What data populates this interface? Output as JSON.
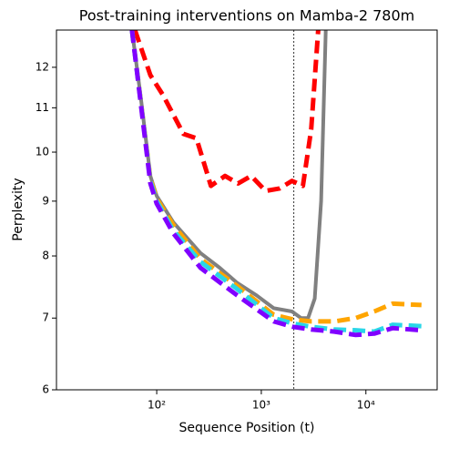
{
  "chart_data": {
    "type": "line",
    "title": "Post-training interventions on Mamba-2 780m",
    "x_label": "Sequence Position (t)",
    "y_label": "Perplexity",
    "xscale": "log",
    "yscale": "log",
    "xlim": [
      11,
      48000
    ],
    "ylim": [
      6,
      13
    ],
    "xticks": [
      {
        "value": 100,
        "label": "10²"
      },
      {
        "value": 1000,
        "label": "10³"
      },
      {
        "value": 10000,
        "label": "10⁴"
      }
    ],
    "yticks": [
      6,
      7,
      8,
      9,
      10,
      11,
      12
    ],
    "vline": 2048,
    "series": [
      {
        "color": "#808080",
        "dashed": false,
        "x": [
          58,
          70,
          87,
          100,
          144,
          262,
          400,
          587,
          900,
          1313,
          1963,
          2400,
          2800,
          3246,
          3735,
          4130
        ],
        "values": [
          13,
          11.3,
          9.5,
          9.1,
          8.6,
          8.05,
          7.8,
          7.55,
          7.35,
          7.15,
          7.1,
          7.0,
          7.0,
          7.3,
          9.0,
          13
        ]
      },
      {
        "color": "#ff0000",
        "dashed": true,
        "x": [
          62,
          87,
          115,
          180,
          240,
          330,
          450,
          600,
          800,
          1100,
          1500,
          1963,
          2500,
          3000,
          3500
        ],
        "values": [
          13,
          11.8,
          11.3,
          10.4,
          10.3,
          9.3,
          9.5,
          9.35,
          9.5,
          9.2,
          9.25,
          9.4,
          9.3,
          10.5,
          13
        ]
      },
      {
        "color": "#ffa500",
        "dashed": true,
        "x": [
          58,
          87,
          100,
          144,
          262,
          587,
          1313,
          2000,
          3000,
          5000,
          8000,
          12000,
          18000,
          34000
        ],
        "values": [
          13,
          9.45,
          9.05,
          8.55,
          7.95,
          7.5,
          7.05,
          6.98,
          6.95,
          6.95,
          7.0,
          7.1,
          7.22,
          7.2
        ]
      },
      {
        "color": "#29d6e8",
        "dashed": true,
        "x": [
          58,
          87,
          100,
          144,
          262,
          587,
          1313,
          2000,
          3000,
          5000,
          8000,
          12000,
          18000,
          34000
        ],
        "values": [
          13,
          9.4,
          9.0,
          8.45,
          7.9,
          7.45,
          7.0,
          6.92,
          6.87,
          6.83,
          6.82,
          6.8,
          6.9,
          6.88
        ]
      },
      {
        "color": "#8000ff",
        "dashed": true,
        "x": [
          58,
          87,
          100,
          144,
          262,
          587,
          1313,
          2000,
          3000,
          5000,
          8000,
          12000,
          18000,
          34000
        ],
        "values": [
          13,
          9.35,
          8.95,
          8.4,
          7.8,
          7.35,
          6.95,
          6.87,
          6.83,
          6.8,
          6.75,
          6.77,
          6.85,
          6.82
        ]
      }
    ]
  }
}
